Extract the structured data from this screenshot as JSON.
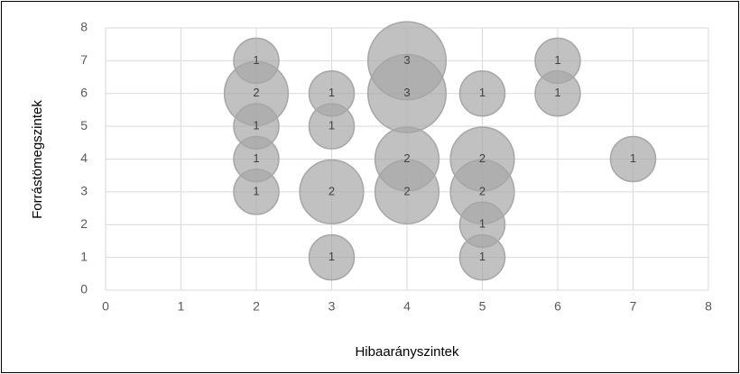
{
  "chart_data": {
    "type": "bubble",
    "x_label": "Hibaarányszintek",
    "y_label": "Forrástömegszintek",
    "xlim": [
      0,
      8
    ],
    "xticks": [
      0,
      1,
      2,
      3,
      4,
      5,
      6,
      7,
      8
    ],
    "ylim": [
      0,
      8
    ],
    "yticks": [
      0,
      1,
      2,
      3,
      4,
      5,
      6,
      7,
      8
    ],
    "grid": true,
    "series": [
      {
        "color": "#a6a6a6",
        "x": [
          2,
          2,
          2,
          2,
          2,
          3,
          3,
          3,
          3,
          4,
          4,
          4,
          4,
          5,
          5,
          5,
          5,
          5,
          6,
          6,
          7
        ],
        "values": [
          7,
          6,
          5,
          4,
          3,
          6,
          5,
          3,
          1,
          7,
          6,
          4,
          3,
          6,
          4,
          3,
          2,
          1,
          7,
          6,
          4
        ],
        "sizes": [
          1,
          2,
          1,
          1,
          1,
          1,
          1,
          2,
          1,
          3,
          3,
          2,
          2,
          1,
          2,
          2,
          1,
          1,
          1,
          1,
          1
        ]
      }
    ]
  }
}
